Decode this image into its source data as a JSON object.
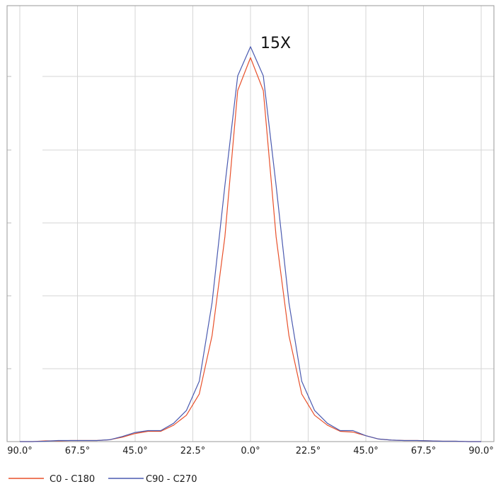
{
  "chart_data": {
    "type": "line",
    "title": "",
    "xlabel": "",
    "ylabel": "",
    "xlim": [
      -90,
      90
    ],
    "ylim": [
      0,
      1
    ],
    "grid": true,
    "legend_position": "bottom-left",
    "annotation": "15X",
    "x_ticks": [
      {
        "value": -90,
        "label": "90.0°"
      },
      {
        "value": -67.5,
        "label": "67.5°"
      },
      {
        "value": -45,
        "label": "45.0°"
      },
      {
        "value": -22.5,
        "label": "22.5°"
      },
      {
        "value": 0,
        "label": "0.0°"
      },
      {
        "value": 22.5,
        "label": "22.5°"
      },
      {
        "value": 45,
        "label": "45.0°"
      },
      {
        "value": 67.5,
        "label": "67.5°"
      },
      {
        "value": 90,
        "label": "90.0°"
      }
    ],
    "y_grid_values": [
      0.2,
      0.4,
      0.6,
      0.8,
      1.0
    ],
    "series": [
      {
        "name": "C0 - C180",
        "color": "#e8502a",
        "x": [
          -90,
          -85,
          -80,
          -75,
          -70,
          -65,
          -60,
          -55,
          -50,
          -45,
          -40,
          -35,
          -30,
          -25,
          -20,
          -15,
          -10,
          -5,
          0,
          5,
          10,
          15,
          20,
          25,
          30,
          35,
          40,
          45,
          50,
          55,
          60,
          65,
          70,
          75,
          80,
          85,
          90
        ],
        "y": [
          0,
          0,
          0.002,
          0.002,
          0.003,
          0.003,
          0.003,
          0.005,
          0.012,
          0.022,
          0.028,
          0.028,
          0.045,
          0.072,
          0.13,
          0.29,
          0.56,
          0.96,
          1.05,
          0.96,
          0.56,
          0.29,
          0.13,
          0.072,
          0.045,
          0.028,
          0.026,
          0.016,
          0.007,
          0.004,
          0.003,
          0.003,
          0.002,
          0.001,
          0.001,
          0,
          0
        ]
      },
      {
        "name": "C90 - C270",
        "color": "#4a5ab0",
        "x": [
          -90,
          -85,
          -80,
          -75,
          -70,
          -65,
          -60,
          -55,
          -50,
          -45,
          -40,
          -35,
          -30,
          -25,
          -20,
          -15,
          -10,
          -5,
          0,
          5,
          10,
          15,
          20,
          25,
          30,
          35,
          40,
          45,
          50,
          55,
          60,
          65,
          70,
          75,
          80,
          85,
          90
        ],
        "y": [
          0,
          0,
          0.001,
          0.003,
          0.003,
          0.003,
          0.003,
          0.005,
          0.014,
          0.025,
          0.03,
          0.03,
          0.05,
          0.085,
          0.165,
          0.38,
          0.7,
          1.0,
          1.08,
          1.0,
          0.7,
          0.38,
          0.165,
          0.085,
          0.05,
          0.03,
          0.03,
          0.016,
          0.007,
          0.004,
          0.003,
          0.003,
          0.002,
          0.001,
          0.001,
          0,
          0
        ]
      }
    ]
  }
}
